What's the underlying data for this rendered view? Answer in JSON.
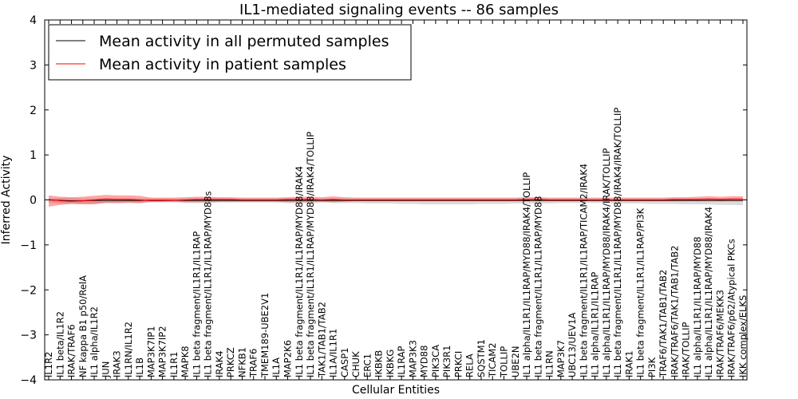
{
  "chart_data": {
    "type": "line",
    "title": "IL1-mediated signaling events -- 86 samples",
    "xlabel": "Cellular Entities",
    "ylabel": "Inferred Activity",
    "ylim": [
      -4,
      4
    ],
    "yticks": [
      "4",
      "3",
      "2",
      "1",
      "0",
      "−1",
      "−2",
      "−3",
      "−4"
    ],
    "ytick_values": [
      4,
      3,
      2,
      1,
      0,
      -1,
      -2,
      -3,
      -4
    ],
    "legend": {
      "placement": "top-left",
      "entries": [
        {
          "label": "Mean activity in all permuted samples",
          "color": "#000000"
        },
        {
          "label": "Mean activity in patient samples",
          "color": "#ff0000"
        }
      ]
    },
    "categories": [
      "IL1R2",
      "IL1 beta/IL1R2",
      "IRAK/TRAF6",
      "NF kappa B1 p50/RelA",
      "IL1 alpha/IL1R2",
      "JUN",
      "IRAK3",
      "IL1RN/IL1R2",
      "IL1B",
      "MAP3K7IP1",
      "MAP3K7IP2",
      "IL1R1",
      "MAPK8",
      "IL1 beta fragment/IL1R1/IL1RAP",
      "IL1 beta fragment/IL1R1/IL1RAP/MYD88s",
      "IRAK4",
      "PRKCZ",
      "NFKB1",
      "TRAF6",
      "TMEM189-UBE2V1",
      "IL1A",
      "MAP2K6",
      "IL1 beta fragment/IL1R1/IL1RAP/MYD88/IRAK4",
      "IL1 beta fragment/IL1R1/IL1RAP/MYD88/IRAK4/TOLLIP",
      "TAK1/TAB1/TAB2",
      "IL1A/IL1R1",
      "CASP1",
      "CHUK",
      "ERC1",
      "IKBKB",
      "IKBKG",
      "IL1RAP",
      "MAP3K3",
      "MYD88",
      "PIK3CA",
      "PIK3R1",
      "PRKCI",
      "RELA",
      "SQSTM1",
      "TICAM2",
      "TOLLIP",
      "UBE2N",
      "IL1 alpha/IL1R1/IL1RAP/MYD88/IRAK4/TOLLIP",
      "IL1 beta fragment/IL1R1/IL1RAP/MYD88",
      "IL1RN",
      "MAP3K7",
      "UBC13/UEV1A",
      "IL1 beta fragment/IL1R1/IL1RAP/TICAM2/IRAK4",
      "IL1 alpha/IL1R1/IL1RAP",
      "IL1 alpha/IL1R1/IL1RAP/MYD88/IRAK4/IRAK/TOLLIP",
      "IL1 beta fragment/IL1R1/IL1RAP/MYD88/IRAK4/IRAK/TOLLIP",
      "IRAK1",
      "IL1 beta fragment/IL1R1/IL1RAP/PI3K",
      "PI3K",
      "TRAF6/TAK1/TAB1/TAB2",
      "IRAK/TRAF6/TAK1/TAB1/TAB2",
      "IRAK/TOLLIP",
      "IL1 alpha/IL1R1/IL1RAP/MYD88",
      "IL1 alpha/IL1R1/IL1RAP/MYD88/IRAK4",
      "IRAK/TRAF6/MEKK3",
      "IRAK/TRAF6/p62/Atypical PKCs",
      "IKK complex/ELKS"
    ],
    "series": [
      {
        "name": "Mean activity in all permuted samples",
        "color": "#000000",
        "values": [
          0.0,
          -0.01,
          -0.02,
          -0.02,
          -0.01,
          -0.01,
          -0.01,
          -0.01,
          -0.01,
          -0.01,
          -0.01,
          -0.01,
          -0.01,
          -0.01,
          -0.01,
          -0.01,
          -0.01,
          -0.01,
          -0.01,
          -0.01,
          -0.01,
          -0.01,
          -0.01,
          -0.01,
          -0.01,
          -0.01,
          -0.01,
          -0.01,
          -0.01,
          -0.01,
          -0.01,
          -0.01,
          -0.01,
          -0.01,
          -0.01,
          -0.01,
          -0.01,
          -0.01,
          -0.01,
          -0.01,
          -0.01,
          -0.01,
          -0.01,
          -0.01,
          -0.01,
          -0.01,
          -0.01,
          -0.01,
          -0.01,
          -0.01,
          -0.01,
          -0.01,
          -0.01,
          -0.01,
          -0.01,
          -0.01,
          -0.01,
          -0.01,
          -0.01,
          -0.01,
          -0.01,
          -0.01
        ],
        "band_lower": [
          -0.06,
          -0.08,
          -0.08,
          -0.08,
          -0.08,
          -0.08,
          -0.07,
          -0.07,
          -0.07,
          -0.06,
          -0.06,
          -0.06,
          -0.07,
          -0.07,
          -0.07,
          -0.06,
          -0.06,
          -0.06,
          -0.06,
          -0.06,
          -0.06,
          -0.07,
          -0.07,
          -0.07,
          -0.06,
          -0.07,
          -0.07,
          -0.07,
          -0.08,
          -0.08,
          -0.08,
          -0.09,
          -0.09,
          -0.1,
          -0.1,
          -0.1,
          -0.1,
          -0.1,
          -0.09,
          -0.09,
          -0.09,
          -0.08,
          -0.08,
          -0.08,
          -0.08,
          -0.07,
          -0.07,
          -0.07,
          -0.07,
          -0.07,
          -0.08,
          -0.08,
          -0.08,
          -0.09,
          -0.09,
          -0.09,
          -0.1,
          -0.1,
          -0.1,
          -0.11,
          -0.11,
          -0.12
        ],
        "band_upper": [
          0.03,
          0.04,
          0.04,
          0.03,
          0.03,
          0.03,
          0.03,
          0.03,
          0.03,
          0.03,
          0.03,
          0.03,
          0.03,
          0.03,
          0.03,
          0.03,
          0.03,
          0.03,
          0.03,
          0.03,
          0.03,
          0.03,
          0.03,
          0.03,
          0.03,
          0.03,
          0.03,
          0.03,
          0.03,
          0.03,
          0.03,
          0.03,
          0.03,
          0.03,
          0.03,
          0.03,
          0.03,
          0.03,
          0.03,
          0.03,
          0.03,
          0.03,
          0.03,
          0.03,
          0.03,
          0.03,
          0.03,
          0.03,
          0.03,
          0.03,
          0.03,
          0.03,
          0.03,
          0.03,
          0.03,
          0.03,
          0.03,
          0.03,
          0.03,
          0.03,
          0.03,
          0.03
        ]
      },
      {
        "name": "Mean activity in patient samples",
        "color": "#ff0000",
        "values": [
          0.01,
          -0.02,
          -0.03,
          -0.02,
          0.0,
          0.02,
          0.01,
          0.01,
          0.0,
          -0.02,
          -0.02,
          -0.01,
          0.0,
          0.01,
          0.01,
          0.01,
          0.01,
          0.0,
          0.0,
          0.0,
          0.0,
          0.01,
          0.01,
          0.01,
          0.0,
          0.01,
          0.0,
          0.0,
          0.0,
          0.0,
          0.0,
          0.0,
          0.0,
          0.0,
          0.0,
          0.0,
          0.0,
          0.0,
          0.0,
          0.0,
          0.0,
          0.0,
          0.01,
          0.01,
          0.0,
          0.0,
          0.0,
          0.0,
          0.0,
          0.0,
          0.0,
          0.0,
          0.0,
          0.0,
          0.0,
          0.01,
          0.01,
          0.01,
          0.02,
          0.01,
          0.02,
          0.02
        ],
        "band_lower": [
          -0.15,
          -0.11,
          -0.09,
          -0.1,
          -0.1,
          -0.06,
          -0.07,
          -0.06,
          -0.07,
          -0.04,
          -0.04,
          -0.04,
          -0.05,
          -0.05,
          -0.05,
          -0.04,
          -0.04,
          -0.04,
          -0.04,
          -0.04,
          -0.04,
          -0.05,
          -0.05,
          -0.05,
          -0.04,
          -0.05,
          -0.04,
          -0.03,
          -0.03,
          -0.03,
          -0.03,
          -0.03,
          -0.03,
          -0.03,
          -0.03,
          -0.03,
          -0.03,
          -0.03,
          -0.03,
          -0.03,
          -0.03,
          -0.03,
          -0.03,
          -0.03,
          -0.03,
          -0.03,
          -0.03,
          -0.03,
          -0.03,
          -0.03,
          -0.03,
          -0.03,
          -0.03,
          -0.03,
          -0.03,
          -0.03,
          -0.03,
          -0.03,
          -0.03,
          -0.03,
          -0.03,
          -0.03
        ],
        "band_upper": [
          0.1,
          0.07,
          0.06,
          0.07,
          0.09,
          0.11,
          0.1,
          0.1,
          0.09,
          0.05,
          0.05,
          0.05,
          0.06,
          0.07,
          0.07,
          0.06,
          0.06,
          0.05,
          0.05,
          0.05,
          0.05,
          0.06,
          0.07,
          0.07,
          0.06,
          0.08,
          0.06,
          0.05,
          0.05,
          0.05,
          0.05,
          0.05,
          0.05,
          0.05,
          0.05,
          0.05,
          0.05,
          0.05,
          0.05,
          0.05,
          0.05,
          0.05,
          0.06,
          0.06,
          0.05,
          0.05,
          0.05,
          0.05,
          0.05,
          0.05,
          0.05,
          0.05,
          0.05,
          0.05,
          0.05,
          0.06,
          0.06,
          0.07,
          0.08,
          0.07,
          0.08,
          0.08
        ]
      }
    ]
  }
}
